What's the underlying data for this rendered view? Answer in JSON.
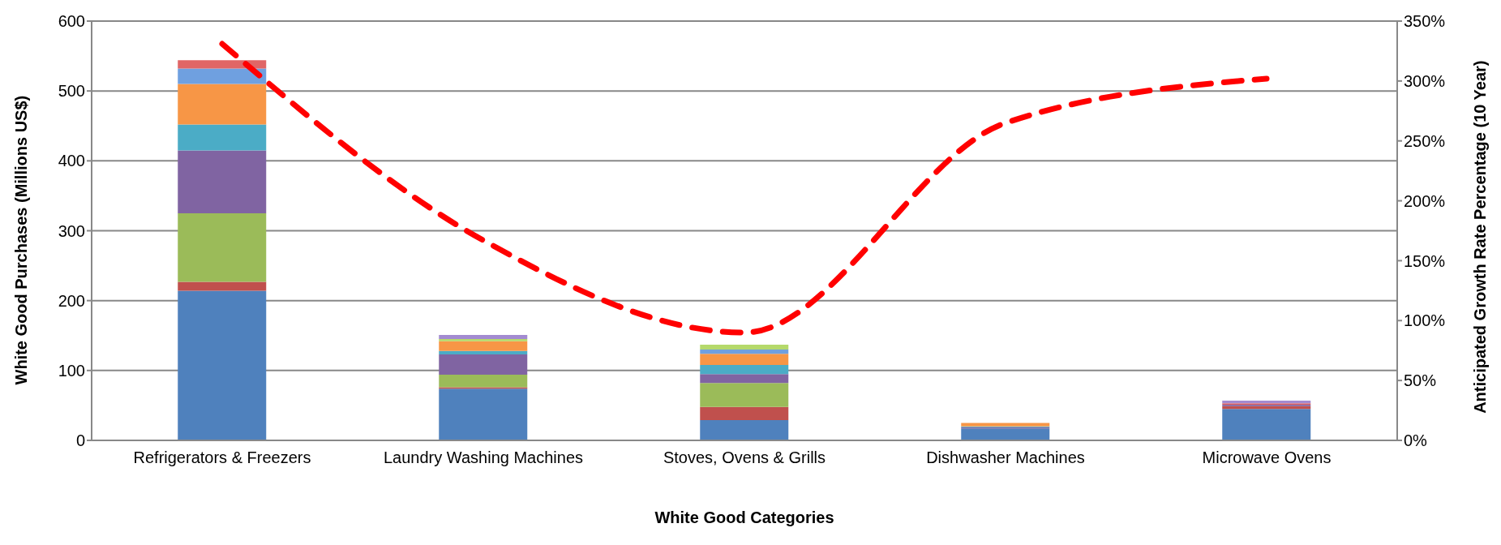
{
  "chart_data": {
    "type": "bar",
    "stacked": true,
    "xlabel": "White Good Categories",
    "ylabel": "White Good Purchases (Millions US$)",
    "y2label": "Anticipated Growth Rate Percentage (10 Year)",
    "categories": [
      "Refrigerators & Freezers",
      "Laundry Washing Machines",
      "Stoves, Ovens & Grills",
      "Dishwasher Machines",
      "Microwave Ovens"
    ],
    "series": [
      {
        "color": "#4f81bd",
        "values": [
          214,
          74,
          29,
          17,
          45
        ]
      },
      {
        "color": "#c0504d",
        "values": [
          13,
          2,
          19,
          0,
          4
        ]
      },
      {
        "color": "#9bbb59",
        "values": [
          98,
          18,
          34,
          0,
          0
        ]
      },
      {
        "color": "#8064a2",
        "values": [
          90,
          29,
          13,
          2,
          2
        ]
      },
      {
        "color": "#4bacc6",
        "values": [
          37,
          5,
          13,
          1,
          0
        ]
      },
      {
        "color": "#f79646",
        "values": [
          58,
          14,
          16,
          5,
          0
        ]
      },
      {
        "color": "#6fa0e0",
        "values": [
          22,
          0,
          6,
          0,
          0
        ]
      },
      {
        "color": "#e06666",
        "values": [
          12,
          0,
          0,
          0,
          2
        ]
      },
      {
        "color": "#b5d96b",
        "values": [
          0,
          3,
          7,
          0,
          0
        ]
      },
      {
        "color": "#a38bd1",
        "values": [
          0,
          6,
          0,
          0,
          4
        ]
      },
      {
        "type": "line",
        "axis": "y2",
        "color": "#ff0000",
        "line_style": "dashed",
        "marker": "none",
        "values": [
          331,
          167,
          90,
          265,
          302
        ]
      }
    ],
    "ylim": [
      0,
      600
    ],
    "yticks": [
      0,
      100,
      200,
      300,
      400,
      500,
      600
    ],
    "y2lim": [
      0,
      350
    ],
    "y2ticks": [
      {
        "value": 0,
        "label": "0%"
      },
      {
        "value": 50,
        "label": "50%"
      },
      {
        "value": 100,
        "label": "100%"
      },
      {
        "value": 150,
        "label": "150%"
      },
      {
        "value": 200,
        "label": "200%"
      },
      {
        "value": 250,
        "label": "250%"
      },
      {
        "value": 300,
        "label": "300%"
      },
      {
        "value": 350,
        "label": "350%"
      }
    ],
    "grid": "y",
    "legend": false
  }
}
